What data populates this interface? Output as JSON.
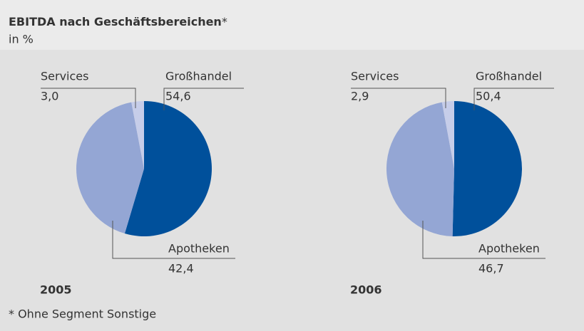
{
  "header": {
    "title": "EBITDA nach Geschäftsbereichen",
    "title_mark": "*",
    "subtitle": "in %"
  },
  "chart_data": [
    {
      "type": "pie",
      "title": "2005",
      "categories": [
        "Großhandel",
        "Apotheken",
        "Services"
      ],
      "values": [
        54.6,
        42.4,
        3.0
      ],
      "value_labels": [
        "54,6",
        "42,4",
        "3,0"
      ],
      "colors": [
        "#00509b",
        "#94a6d4",
        "#c6cde9"
      ]
    },
    {
      "type": "pie",
      "title": "2006",
      "categories": [
        "Großhandel",
        "Apotheken",
        "Services"
      ],
      "values": [
        50.4,
        46.7,
        2.9
      ],
      "value_labels": [
        "50,4",
        "46,7",
        "2,9"
      ],
      "colors": [
        "#00509b",
        "#94a6d4",
        "#c6cde9"
      ]
    }
  ],
  "footnote": "* Ohne Segment Sonstige"
}
